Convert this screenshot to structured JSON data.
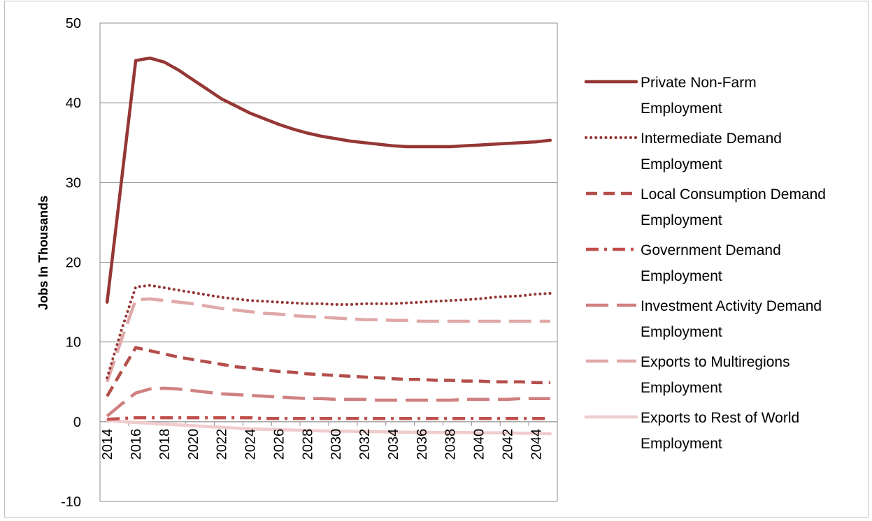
{
  "chart_data": {
    "type": "line",
    "title": "",
    "xlabel": "",
    "ylabel": "Jobs In Thousands",
    "ylim": [
      -10,
      50
    ],
    "yticks": [
      50,
      40,
      30,
      20,
      10,
      0,
      -10
    ],
    "x": [
      2014,
      2015,
      2016,
      2017,
      2018,
      2019,
      2020,
      2021,
      2022,
      2023,
      2024,
      2025,
      2026,
      2027,
      2028,
      2029,
      2030,
      2031,
      2032,
      2033,
      2034,
      2035,
      2036,
      2037,
      2038,
      2039,
      2040,
      2041,
      2042,
      2043,
      2044,
      2045
    ],
    "xtick_labels": [
      "2014",
      "2016",
      "2018",
      "2020",
      "2022",
      "2024",
      "2026",
      "2028",
      "2030",
      "2032",
      "2034",
      "2036",
      "2038",
      "2040",
      "2042",
      "2044"
    ],
    "grid": true,
    "legend_position": "right",
    "series": [
      {
        "name": "Private Non-Farm Employment",
        "legend_lines": [
          "Private Non-Farm",
          "Employment"
        ],
        "color": "#953735",
        "style": "solid",
        "values": [
          15.0,
          30.2,
          45.3,
          45.6,
          45.1,
          44.1,
          42.9,
          41.7,
          40.5,
          39.6,
          38.7,
          38.0,
          37.3,
          36.7,
          36.2,
          35.8,
          35.5,
          35.2,
          35.0,
          34.8,
          34.6,
          34.5,
          34.5,
          34.5,
          34.5,
          34.6,
          34.7,
          34.8,
          34.9,
          35.0,
          35.1,
          35.3
        ]
      },
      {
        "name": "Intermediate Demand Employment",
        "legend_lines": [
          "Intermediate Demand",
          "Employment"
        ],
        "color": "#953735",
        "style": "dotted",
        "values": [
          5.5,
          11.5,
          16.9,
          17.1,
          16.8,
          16.5,
          16.2,
          15.9,
          15.6,
          15.4,
          15.2,
          15.1,
          15.0,
          14.9,
          14.8,
          14.8,
          14.7,
          14.7,
          14.8,
          14.8,
          14.8,
          14.9,
          15.0,
          15.1,
          15.2,
          15.3,
          15.4,
          15.6,
          15.7,
          15.8,
          16.0,
          16.1
        ]
      },
      {
        "name": "Local Consumption Demand Employment",
        "legend_lines": [
          "Local Consumption Demand",
          "Employment"
        ],
        "color": "#b44e4b",
        "style": "dash",
        "values": [
          3.2,
          6.3,
          9.3,
          8.9,
          8.5,
          8.1,
          7.8,
          7.5,
          7.2,
          6.9,
          6.7,
          6.5,
          6.3,
          6.2,
          6.0,
          5.9,
          5.8,
          5.7,
          5.6,
          5.5,
          5.4,
          5.3,
          5.3,
          5.2,
          5.2,
          5.1,
          5.1,
          5.0,
          5.0,
          5.0,
          4.9,
          4.9
        ]
      },
      {
        "name": "Government Demand Employment",
        "legend_lines": [
          "Government Demand",
          "Employment"
        ],
        "color": "#c0504d",
        "style": "dashdot",
        "values": [
          0.3,
          0.4,
          0.5,
          0.5,
          0.5,
          0.5,
          0.5,
          0.5,
          0.5,
          0.5,
          0.5,
          0.4,
          0.4,
          0.4,
          0.4,
          0.4,
          0.4,
          0.4,
          0.4,
          0.4,
          0.4,
          0.4,
          0.4,
          0.4,
          0.4,
          0.4,
          0.4,
          0.4,
          0.4,
          0.4,
          0.4,
          0.4
        ]
      },
      {
        "name": "Investment Activity Demand Employment",
        "legend_lines": [
          "Investment Activity Demand",
          "Employment"
        ],
        "color": "#d08080",
        "style": "longdash",
        "values": [
          0.7,
          2.2,
          3.6,
          4.1,
          4.2,
          4.1,
          3.9,
          3.7,
          3.5,
          3.4,
          3.3,
          3.2,
          3.1,
          3.0,
          2.9,
          2.9,
          2.8,
          2.8,
          2.8,
          2.7,
          2.7,
          2.7,
          2.7,
          2.7,
          2.7,
          2.8,
          2.8,
          2.8,
          2.8,
          2.9,
          2.9,
          2.9
        ]
      },
      {
        "name": "Exports to Multiregions Employment",
        "legend_lines": [
          "Exports to Multiregions",
          "Employment"
        ],
        "color": "#e0a8a8",
        "style": "longdash",
        "values": [
          5.0,
          10.3,
          15.3,
          15.4,
          15.2,
          15.0,
          14.8,
          14.5,
          14.2,
          14.0,
          13.8,
          13.6,
          13.5,
          13.3,
          13.2,
          13.1,
          13.0,
          12.9,
          12.8,
          12.8,
          12.7,
          12.7,
          12.6,
          12.6,
          12.6,
          12.6,
          12.6,
          12.6,
          12.6,
          12.6,
          12.6,
          12.6
        ]
      },
      {
        "name": "Exports to Rest of World Employment",
        "legend_lines": [
          "Exports to Rest of World",
          "Employment"
        ],
        "color": "#f0cccc",
        "style": "solid",
        "values": [
          0.2,
          0.0,
          -0.1,
          -0.2,
          -0.3,
          -0.4,
          -0.5,
          -0.6,
          -0.7,
          -0.8,
          -0.9,
          -0.95,
          -1.0,
          -1.05,
          -1.1,
          -1.15,
          -1.2,
          -1.2,
          -1.25,
          -1.25,
          -1.3,
          -1.3,
          -1.3,
          -1.35,
          -1.35,
          -1.35,
          -1.4,
          -1.4,
          -1.4,
          -1.45,
          -1.45,
          -1.5
        ]
      }
    ]
  }
}
